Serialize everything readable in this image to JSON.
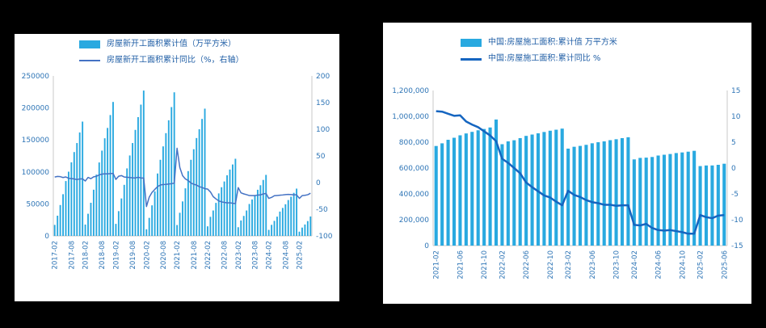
{
  "page": {
    "background": "#000000",
    "panel_background": "#ffffff"
  },
  "chart_data": [
    {
      "type": "bar",
      "combo": "bar+line",
      "legend": [
        {
          "label": "房屋新开工面积累计值（万平方米）",
          "marker": "bar"
        },
        {
          "label": "房屋新开工面积累计同比（%，右轴）",
          "marker": "line"
        }
      ],
      "left_axis": {
        "min": 0,
        "max": 250000,
        "step": 50000,
        "comma": false
      },
      "right_axis": {
        "min": -100,
        "max": 200,
        "step": 50
      },
      "x_ticks": [
        "2017-02",
        "2017-08",
        "2018-02",
        "2018-08",
        "2019-02",
        "2019-08",
        "2020-02",
        "2020-08",
        "2021-02",
        "2021-08",
        "2022-02",
        "2022-08",
        "2023-02",
        "2023-08",
        "2024-02",
        "2024-08",
        "2025-02"
      ],
      "colors": {
        "bar": "#29A9E0",
        "line": "#4472C4",
        "text": "#2E75B6",
        "line_width": 1.5
      },
      "categories": [
        "2017-02",
        "2017-03",
        "2017-04",
        "2017-05",
        "2017-06",
        "2017-07",
        "2017-08",
        "2017-09",
        "2017-10",
        "2017-11",
        "2017-12",
        "2018-02",
        "2018-03",
        "2018-04",
        "2018-05",
        "2018-06",
        "2018-07",
        "2018-08",
        "2018-09",
        "2018-10",
        "2018-11",
        "2018-12",
        "2019-02",
        "2019-03",
        "2019-04",
        "2019-05",
        "2019-06",
        "2019-07",
        "2019-08",
        "2019-09",
        "2019-10",
        "2019-11",
        "2019-12",
        "2020-02",
        "2020-03",
        "2020-04",
        "2020-05",
        "2020-06",
        "2020-07",
        "2020-08",
        "2020-09",
        "2020-10",
        "2020-11",
        "2020-12",
        "2021-02",
        "2021-03",
        "2021-04",
        "2021-05",
        "2021-06",
        "2021-07",
        "2021-08",
        "2021-09",
        "2021-10",
        "2021-11",
        "2021-12",
        "2022-02",
        "2022-03",
        "2022-04",
        "2022-05",
        "2022-06",
        "2022-07",
        "2022-08",
        "2022-09",
        "2022-10",
        "2022-11",
        "2022-12",
        "2023-02",
        "2023-03",
        "2023-04",
        "2023-05",
        "2023-06",
        "2023-07",
        "2023-08",
        "2023-09",
        "2023-10",
        "2023-11",
        "2023-12",
        "2024-02",
        "2024-03",
        "2024-04",
        "2024-05",
        "2024-06",
        "2024-07",
        "2024-08",
        "2024-09",
        "2024-10",
        "2024-11",
        "2024-12",
        "2025-02",
        "2025-03",
        "2025-04",
        "2025-05",
        "2025-06"
      ],
      "series": [
        {
          "name": "房屋新开工面积累计值",
          "type": "bar",
          "axis": "left",
          "values": [
            17238,
            31560,
            48240,
            65179,
            85720,
            100371,
            114996,
            131033,
            145127,
            161679,
            178654,
            17746,
            34615,
            51779,
            72190,
            95817,
            114781,
            133293,
            152583,
            168754,
            188895,
            209342,
            18814,
            38728,
            58552,
            79784,
            105509,
            125716,
            145133,
            165707,
            185634,
            205194,
            227154,
            10370,
            28203,
            47768,
            69533,
            97536,
            118963,
            139917,
            160590,
            180718,
            201331,
            224433,
            17037,
            36163,
            53905,
            74349,
            101288,
            118948,
            135502,
            152944,
            166736,
            182820,
            198895,
            14967,
            29838,
            39739,
            51628,
            66423,
            76067,
            85062,
            94767,
            103722,
            111632,
            120587,
            13567,
            24121,
            31220,
            39723,
            49880,
            56969,
            63891,
            72123,
            79177,
            87456,
            95376,
            9429,
            17283,
            23510,
            30090,
            38023,
            43733,
            49465,
            56051,
            61227,
            67308,
            73893,
            6614,
            12996,
            17835,
            23184,
            30364
          ]
        },
        {
          "name": "房屋新开工面积累计同比",
          "type": "line",
          "axis": "right",
          "values": [
            10.4,
            11.6,
            11.1,
            9.5,
            10.6,
            8.0,
            7.6,
            6.8,
            5.6,
            6.9,
            7.0,
            2.9,
            9.7,
            7.3,
            10.8,
            11.8,
            14.4,
            15.9,
            16.4,
            16.3,
            16.8,
            17.2,
            6.0,
            11.9,
            13.1,
            10.5,
            10.1,
            9.5,
            8.9,
            8.6,
            10.0,
            8.6,
            8.5,
            -44.9,
            -27.2,
            -18.4,
            -12.8,
            -7.6,
            -4.5,
            -3.6,
            -3.4,
            -2.6,
            -2.0,
            -1.2,
            64.3,
            28.2,
            12.8,
            6.9,
            3.8,
            -0.9,
            -3.2,
            -4.5,
            -7.7,
            -9.1,
            -11.4,
            -12.2,
            -17.5,
            -26.3,
            -30.6,
            -34.4,
            -36.1,
            -37.2,
            -38.0,
            -37.8,
            -38.9,
            -39.4,
            -9.4,
            -19.2,
            -21.2,
            -22.6,
            -24.3,
            -24.5,
            -24.4,
            -23.4,
            -23.2,
            -21.2,
            -20.4,
            -29.7,
            -27.8,
            -24.6,
            -24.2,
            -23.7,
            -23.2,
            -22.5,
            -22.2,
            -22.6,
            -23.0,
            -23.0,
            -29.6,
            -24.4,
            -23.8,
            -22.8,
            -20.0
          ]
        }
      ]
    },
    {
      "type": "bar",
      "combo": "bar+line",
      "legend": [
        {
          "label": "中国:房屋施工面积:累计值 万平方米",
          "marker": "bar"
        },
        {
          "label": "中国:房屋施工面积:累计同比 %",
          "marker": "line"
        }
      ],
      "left_axis": {
        "min": 0,
        "max": 1200000,
        "step": 200000,
        "comma": true
      },
      "right_axis": {
        "min": -15,
        "max": 15,
        "step": 5
      },
      "x_ticks": [
        "2021-02",
        "2021-06",
        "2021-10",
        "2022-02",
        "2022-06",
        "2022-10",
        "2023-02",
        "2023-06",
        "2023-10",
        "2024-02",
        "2024-06",
        "2024-10",
        "2025-02",
        "2025-06"
      ],
      "colors": {
        "bar": "#29A9E0",
        "line": "#1565C0",
        "text": "#2E75B6",
        "line_width": 2.5
      },
      "categories": [
        "2021-02",
        "2021-03",
        "2021-04",
        "2021-05",
        "2021-06",
        "2021-07",
        "2021-08",
        "2021-09",
        "2021-10",
        "2021-11",
        "2021-12",
        "2022-02",
        "2022-03",
        "2022-04",
        "2022-05",
        "2022-06",
        "2022-07",
        "2022-08",
        "2022-09",
        "2022-10",
        "2022-11",
        "2022-12",
        "2023-02",
        "2023-03",
        "2023-04",
        "2023-05",
        "2023-06",
        "2023-07",
        "2023-08",
        "2023-09",
        "2023-10",
        "2023-11",
        "2023-12",
        "2024-02",
        "2024-03",
        "2024-04",
        "2024-05",
        "2024-06",
        "2024-07",
        "2024-08",
        "2024-09",
        "2024-10",
        "2024-11",
        "2024-12",
        "2025-02",
        "2025-03",
        "2025-04",
        "2025-05",
        "2025-06"
      ],
      "series": [
        {
          "name": "中国:房屋施工面积:累计值",
          "type": "bar",
          "axis": "left",
          "values": [
            770629,
            791175,
            818513,
            834219,
            853224,
            867687,
            879927,
            892038,
            902302,
            913785,
            975387,
            784459,
            806259,
            814978,
            831525,
            848812,
            859194,
            868649,
            878919,
            888894,
            896565,
            904999,
            750240,
            764577,
            771271,
            779506,
            791548,
            799682,
            806371,
            815688,
            822895,
            831364,
            838364,
            666902,
            678501,
            680537,
            685537,
            696818,
            702868,
            708652,
            715968,
            720660,
            726679,
            733247,
            615150,
            619725,
            620143,
            625020,
            633321
          ]
        },
        {
          "name": "中国:房屋施工面积:累计同比",
          "type": "line",
          "axis": "right",
          "values": [
            11.0,
            10.9,
            10.5,
            10.1,
            10.2,
            9.0,
            8.4,
            7.9,
            7.1,
            6.3,
            5.2,
            1.8,
            1.0,
            0.0,
            -1.0,
            -2.8,
            -3.7,
            -4.5,
            -5.3,
            -5.7,
            -6.5,
            -7.2,
            -4.4,
            -5.2,
            -5.6,
            -6.2,
            -6.6,
            -6.8,
            -7.1,
            -7.1,
            -7.3,
            -7.2,
            -7.2,
            -11.0,
            -11.1,
            -10.8,
            -11.6,
            -12.0,
            -12.1,
            -12.0,
            -12.2,
            -12.4,
            -12.7,
            -12.7,
            -9.1,
            -9.5,
            -9.7,
            -9.2,
            -9.1
          ]
        }
      ]
    }
  ]
}
